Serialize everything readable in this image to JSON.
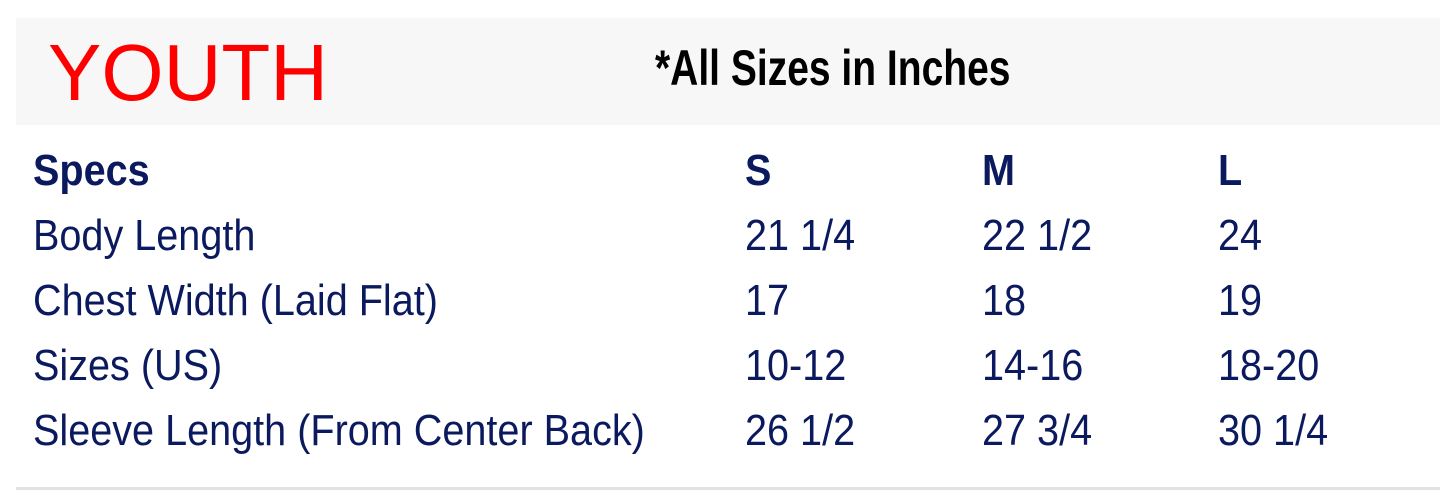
{
  "header": {
    "label": "YOUTH",
    "note": "*All Sizes in Inches"
  },
  "colors": {
    "label": "#ff0000",
    "text": "#0b1a5e",
    "band": "#f7f7f7"
  },
  "table": {
    "columns": [
      "Specs",
      "S",
      "M",
      "L"
    ],
    "rows": [
      [
        "Body Length",
        "21 1/4",
        "22 1/2",
        "24"
      ],
      [
        "Chest Width (Laid Flat)",
        "17",
        "18",
        "19"
      ],
      [
        "Sizes (US)",
        "10-12",
        "14-16",
        "18-20"
      ],
      [
        "Sleeve Length (From Center Back)",
        "26 1/2",
        "27 3/4",
        "30 1/4"
      ]
    ]
  }
}
